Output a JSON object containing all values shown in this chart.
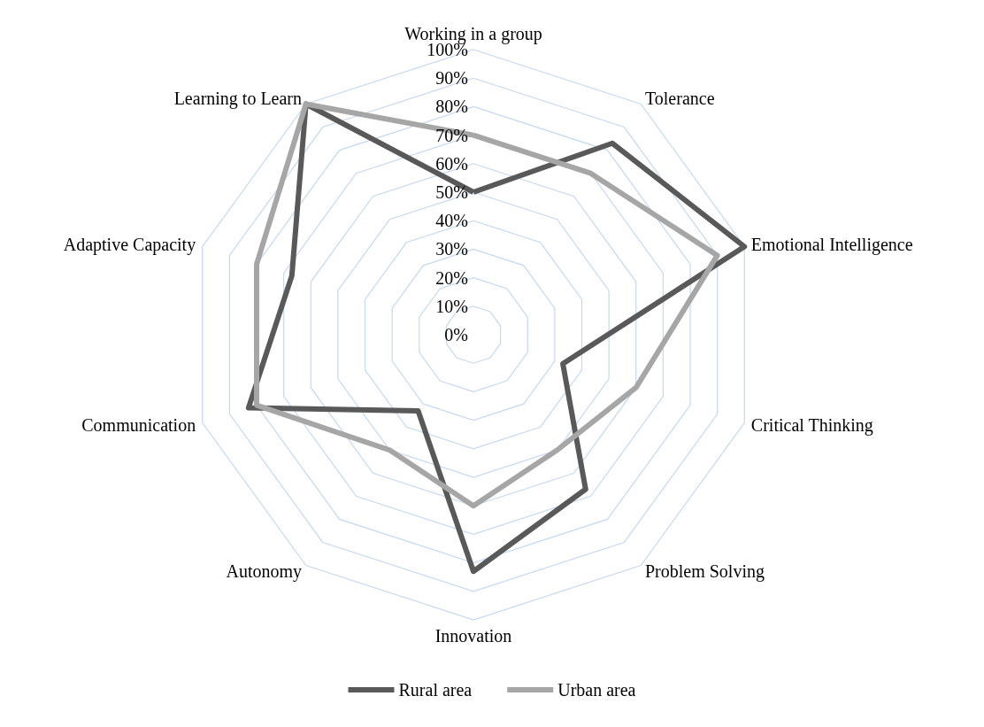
{
  "chart_data": {
    "type": "radar",
    "categories": [
      "Working in a group",
      "Tolerance",
      "Emotional Intelligence",
      "Critical Thinking",
      "Problem Solving",
      "Innovation",
      "Autonomy",
      "Communication",
      "Adaptive Capacity",
      "Learning to Learn"
    ],
    "series": [
      {
        "name": "Rural area",
        "color": "#595959",
        "values": [
          50,
          83,
          100,
          33,
          67,
          83,
          33,
          83,
          67,
          100
        ]
      },
      {
        "name": "Urban area",
        "color": "#a6a6a6",
        "values": [
          70,
          70,
          90,
          60,
          50,
          60,
          50,
          80,
          80,
          100
        ]
      }
    ],
    "ylim": [
      0,
      100
    ],
    "yticks": [
      {
        "value": 0,
        "label": "0%"
      },
      {
        "value": 10,
        "label": "10%"
      },
      {
        "value": 20,
        "label": "20%"
      },
      {
        "value": 30,
        "label": "30%"
      },
      {
        "value": 40,
        "label": "40%"
      },
      {
        "value": 50,
        "label": "50%"
      },
      {
        "value": 60,
        "label": "60%"
      },
      {
        "value": 70,
        "label": "70%"
      },
      {
        "value": 80,
        "label": "80%"
      },
      {
        "value": 90,
        "label": "90%"
      },
      {
        "value": 100,
        "label": "100%"
      }
    ],
    "grid": true,
    "legend": "bottom",
    "marker": "none",
    "line_style": "solid"
  }
}
